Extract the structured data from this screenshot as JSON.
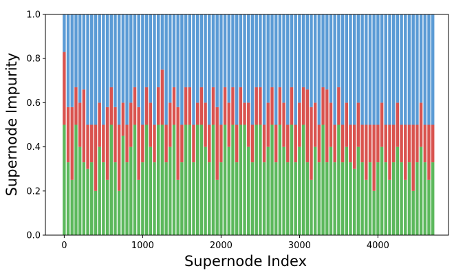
{
  "chart_data": {
    "type": "bar",
    "stacked": true,
    "title": "",
    "xlabel": "Supernode Index",
    "ylabel": "Supernode Impurity",
    "xlim": [
      -240,
      4900
    ],
    "ylim": [
      0,
      1.0
    ],
    "xticks": [
      0,
      1000,
      2000,
      3000,
      4000
    ],
    "yticks": [
      0.0,
      0.2,
      0.4,
      0.6,
      0.8,
      1.0
    ],
    "xtick_labels": [
      "0",
      "1000",
      "2000",
      "3000",
      "4000"
    ],
    "ytick_labels": [
      "0.0",
      "0.2",
      "0.4",
      "0.6",
      "0.8",
      "1.0"
    ],
    "grid": false,
    "legend": null,
    "series_colors": [
      "#5cb85c",
      "#d9534f",
      "#5b9bd5"
    ],
    "x_start": 0,
    "x_step": 50,
    "bar_count": 95,
    "green_values": [
      0.5,
      0.33,
      0.25,
      0.5,
      0.4,
      0.33,
      0.3,
      0.33,
      0.2,
      0.4,
      0.33,
      0.25,
      0.5,
      0.33,
      0.2,
      0.45,
      0.33,
      0.4,
      0.5,
      0.25,
      0.33,
      0.5,
      0.4,
      0.33,
      0.5,
      0.5,
      0.33,
      0.4,
      0.5,
      0.25,
      0.33,
      0.5,
      0.5,
      0.33,
      0.5,
      0.5,
      0.4,
      0.33,
      0.5,
      0.25,
      0.33,
      0.5,
      0.4,
      0.5,
      0.33,
      0.5,
      0.5,
      0.4,
      0.33,
      0.5,
      0.5,
      0.33,
      0.4,
      0.5,
      0.33,
      0.5,
      0.4,
      0.33,
      0.5,
      0.33,
      0.4,
      0.5,
      0.33,
      0.25,
      0.4,
      0.33,
      0.5,
      0.33,
      0.4,
      0.33,
      0.5,
      0.33,
      0.4,
      0.33,
      0.3,
      0.4,
      0.33,
      0.25,
      0.33,
      0.2,
      0.33,
      0.4,
      0.33,
      0.25,
      0.33,
      0.4,
      0.33,
      0.25,
      0.33,
      0.2,
      0.33,
      0.4,
      0.33,
      0.25,
      0.33
    ],
    "red_values": [
      0.33,
      0.25,
      0.33,
      0.17,
      0.2,
      0.33,
      0.2,
      0.17,
      0.3,
      0.2,
      0.17,
      0.33,
      0.17,
      0.25,
      0.3,
      0.15,
      0.17,
      0.2,
      0.17,
      0.33,
      0.17,
      0.17,
      0.2,
      0.17,
      0.17,
      0.25,
      0.17,
      0.2,
      0.17,
      0.33,
      0.17,
      0.17,
      0.17,
      0.17,
      0.1,
      0.17,
      0.2,
      0.17,
      0.17,
      0.33,
      0.17,
      0.17,
      0.2,
      0.17,
      0.17,
      0.17,
      0.1,
      0.2,
      0.17,
      0.17,
      0.17,
      0.17,
      0.2,
      0.17,
      0.17,
      0.17,
      0.2,
      0.17,
      0.17,
      0.17,
      0.2,
      0.17,
      0.33,
      0.33,
      0.2,
      0.17,
      0.17,
      0.33,
      0.2,
      0.17,
      0.17,
      0.17,
      0.2,
      0.17,
      0.2,
      0.2,
      0.17,
      0.25,
      0.17,
      0.3,
      0.17,
      0.2,
      0.17,
      0.25,
      0.17,
      0.2,
      0.17,
      0.25,
      0.17,
      0.3,
      0.17,
      0.2,
      0.17,
      0.25,
      0.17
    ]
  }
}
